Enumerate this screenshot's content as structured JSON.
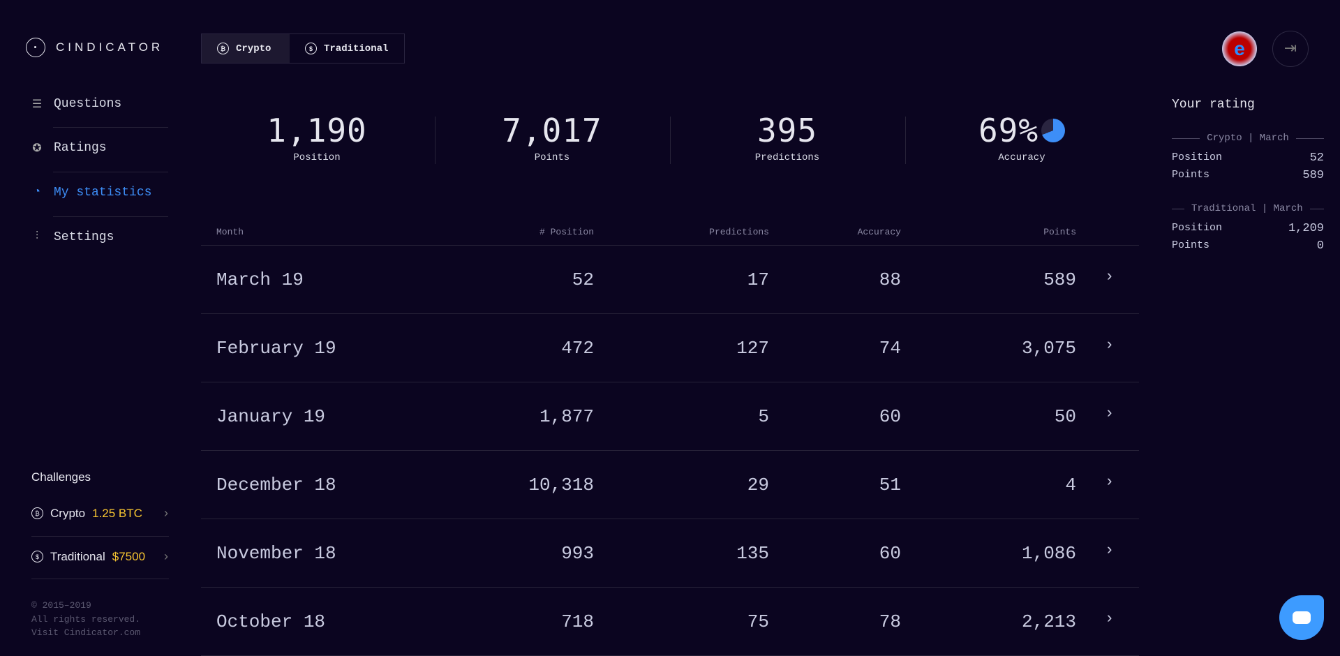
{
  "brand": "CINDICATOR",
  "tabs": [
    {
      "label": "Crypto",
      "icon": "bitcoin-icon"
    },
    {
      "label": "Traditional",
      "icon": "dollar-icon"
    }
  ],
  "nav": [
    {
      "label": "Questions"
    },
    {
      "label": "Ratings"
    },
    {
      "label": "My statistics"
    },
    {
      "label": "Settings"
    }
  ],
  "challenges": {
    "title": "Challenges",
    "items": [
      {
        "label": "Crypto",
        "prize": "1.25 BTC"
      },
      {
        "label": "Traditional",
        "prize": "$7500"
      }
    ]
  },
  "footer": [
    "© 2015–2019",
    "All rights reserved.",
    "Visit Cindicator.com"
  ],
  "stats": [
    {
      "value": "1,190",
      "label": "Position"
    },
    {
      "value": "7,017",
      "label": "Points"
    },
    {
      "value": "395",
      "label": "Predictions"
    },
    {
      "value": "69%",
      "label": "Accuracy",
      "fraction": 0.69
    }
  ],
  "table": {
    "headers": [
      "Month",
      "# Position",
      "Predictions",
      "Accuracy",
      "Points"
    ],
    "rows": [
      [
        "March 19",
        "52",
        "17",
        "88",
        "589"
      ],
      [
        "February 19",
        "472",
        "127",
        "74",
        "3,075"
      ],
      [
        "January 19",
        "1,877",
        "5",
        "60",
        "50"
      ],
      [
        "December 18",
        "10,318",
        "29",
        "51",
        "4"
      ],
      [
        "November 18",
        "993",
        "135",
        "60",
        "1,086"
      ],
      [
        "October 18",
        "718",
        "75",
        "78",
        "2,213"
      ]
    ]
  },
  "rating": {
    "title": "Your rating",
    "sections": [
      {
        "title": "Crypto | March",
        "position_label": "Position",
        "position": "52",
        "points_label": "Points",
        "points": "589"
      },
      {
        "title": "Traditional | March",
        "position_label": "Position",
        "position": "1,209",
        "points_label": "Points",
        "points": "0"
      }
    ]
  },
  "colors": {
    "accent": "#3d8ef7",
    "prize": "#f7c531",
    "bg": "#0b0520"
  }
}
